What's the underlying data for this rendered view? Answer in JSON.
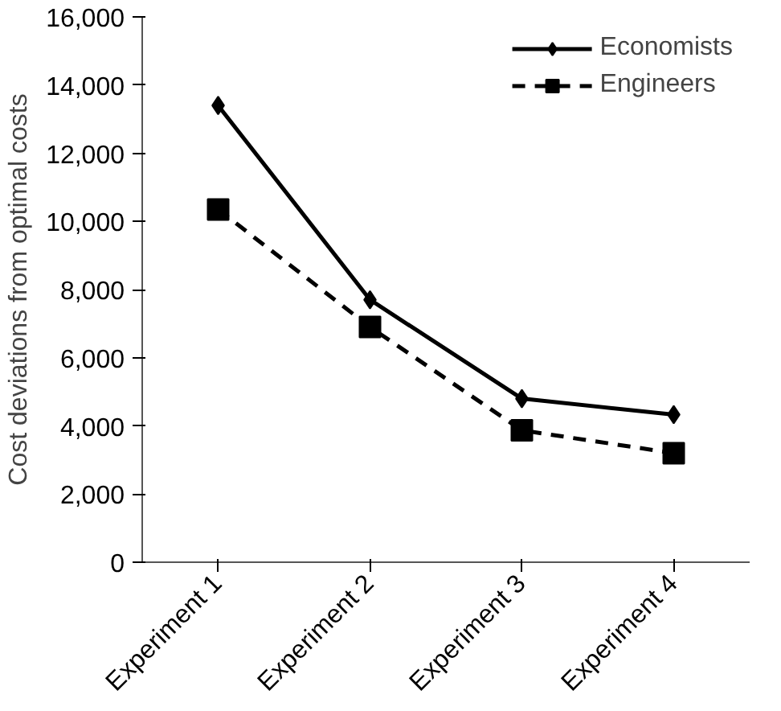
{
  "chart_data": {
    "type": "line",
    "ylabel": "Cost deviations from optimal costs",
    "categories": [
      "Experiment 1",
      "Experiment 2",
      "Experiment 3",
      "Experiment 4"
    ],
    "series": [
      {
        "name": "Economists",
        "color": "#000000",
        "values": [
          13400,
          7700,
          4800,
          4330
        ],
        "marker": "diamond",
        "line_style": "solid"
      },
      {
        "name": "Engineers",
        "color": "#000000",
        "values": [
          10350,
          6900,
          3870,
          3200
        ],
        "marker": "square",
        "line_style": "dashed"
      }
    ],
    "ylim": [
      0,
      16000
    ],
    "yticks": [
      {
        "value": 0,
        "label": "0"
      },
      {
        "value": 2000,
        "label": "2,000"
      },
      {
        "value": 4000,
        "label": "4,000"
      },
      {
        "value": 6000,
        "label": "6,000"
      },
      {
        "value": 8000,
        "label": "8,000"
      },
      {
        "value": 10000,
        "label": "10,000"
      },
      {
        "value": 12000,
        "label": "12,000"
      },
      {
        "value": 14000,
        "label": "14,000"
      },
      {
        "value": 16000,
        "label": "16,000"
      }
    ],
    "grid": false,
    "legend": "top right"
  }
}
